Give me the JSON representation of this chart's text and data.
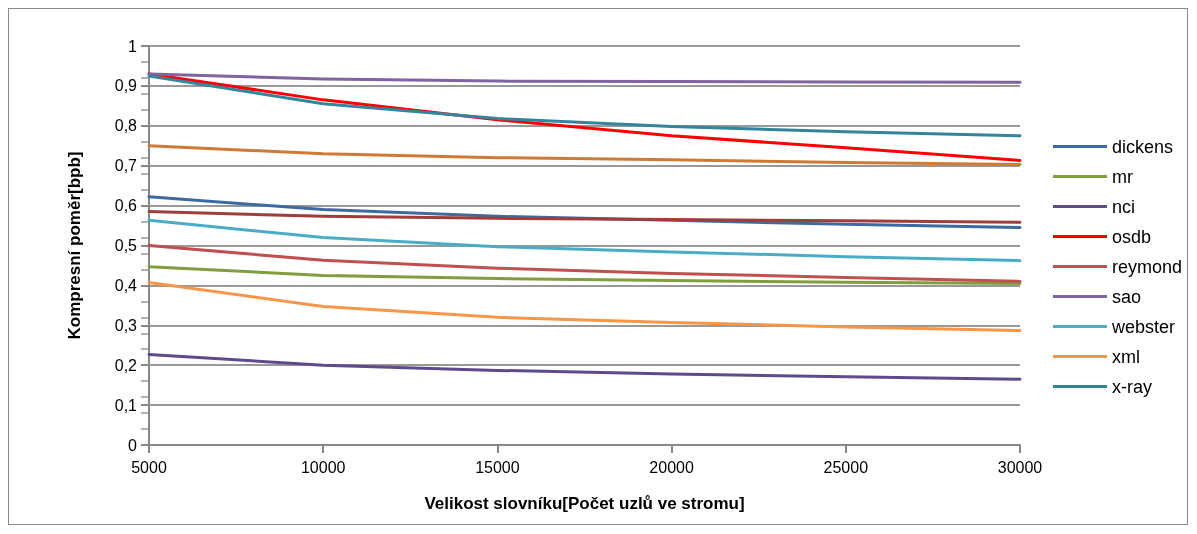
{
  "chart_data": {
    "type": "line",
    "xlabel": "Velikost slovníku[Počet uzlů ve stromu]",
    "ylabel": "Kompresní poměr[bpb]",
    "x": [
      5000,
      10000,
      15000,
      20000,
      25000,
      30000
    ],
    "xlim": [
      5000,
      30000
    ],
    "xticks": [
      5000,
      10000,
      15000,
      20000,
      25000,
      30000
    ],
    "ylim": [
      0,
      1
    ],
    "yticks": [
      0,
      {
        "value": 0.1,
        "label": "0,1"
      },
      {
        "value": 0.2,
        "label": "0,2"
      },
      {
        "value": 0.3,
        "label": "0,3"
      },
      {
        "value": 0.4,
        "label": "0,4"
      },
      {
        "value": 0.5,
        "label": "0,5"
      },
      {
        "value": 0.6,
        "label": "0,6"
      },
      {
        "value": 0.7,
        "label": "0,7"
      },
      {
        "value": 0.8,
        "label": "0,8"
      },
      {
        "value": 0.9,
        "label": "0,9"
      },
      1
    ],
    "grid": "y",
    "legend": "right",
    "marker": "none",
    "line_style": "solid",
    "series": [
      {
        "name": "dickens",
        "color": "#3d6aa3",
        "values": [
          0.622,
          0.59,
          0.573,
          0.563,
          0.553,
          0.545
        ]
      },
      {
        "color": "#a03c3a",
        "values": [
          0.585,
          0.573,
          0.568,
          0.565,
          0.562,
          0.558
        ]
      },
      {
        "name": "mr",
        "color": "#7f9f3f",
        "values": [
          0.447,
          0.425,
          0.417,
          0.412,
          0.408,
          0.405
        ]
      },
      {
        "name": "nci",
        "color": "#5f4b8b",
        "values": [
          0.227,
          0.2,
          0.187,
          0.178,
          0.171,
          0.165
        ]
      },
      {
        "color": "#d07b35",
        "values": [
          0.75,
          0.73,
          0.72,
          0.715,
          0.708,
          0.703
        ]
      },
      {
        "name": "osdb",
        "color": "#ff0000",
        "values": [
          0.93,
          0.865,
          0.815,
          0.775,
          0.745,
          0.713
        ]
      },
      {
        "name": "reymond",
        "color": "#c0504d",
        "values": [
          0.5,
          0.463,
          0.443,
          0.43,
          0.42,
          0.41
        ]
      },
      {
        "name": "sao",
        "color": "#8064a2",
        "values": [
          0.93,
          0.917,
          0.912,
          0.911,
          0.91,
          0.909
        ]
      },
      {
        "name": "webster",
        "color": "#4bacc6",
        "values": [
          0.563,
          0.52,
          0.497,
          0.484,
          0.472,
          0.462
        ]
      },
      {
        "name": "xml",
        "color": "#f79646",
        "values": [
          0.407,
          0.347,
          0.32,
          0.307,
          0.296,
          0.287
        ]
      },
      {
        "name": "x-ray",
        "color": "#31859c",
        "values": [
          0.925,
          0.855,
          0.818,
          0.798,
          0.785,
          0.775
        ]
      }
    ]
  }
}
